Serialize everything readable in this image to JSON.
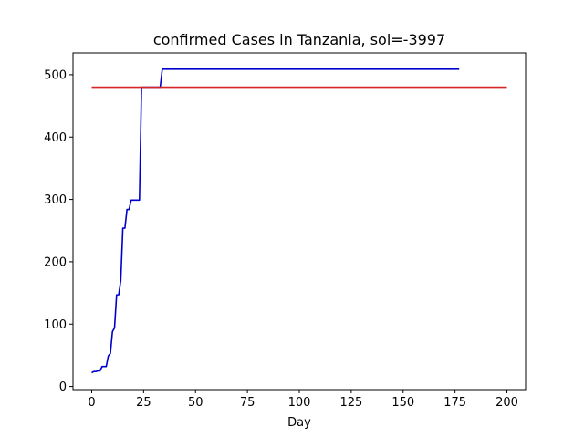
{
  "chart_data": {
    "type": "line",
    "title": "confirmed Cases in Tanzania, sol=-3997",
    "xlabel": "Day",
    "ylabel": "",
    "xlim": [
      -9,
      209
    ],
    "ylim": [
      -5,
      535
    ],
    "xticks": [
      0,
      25,
      50,
      75,
      100,
      125,
      150,
      175,
      200
    ],
    "yticks": [
      0,
      100,
      200,
      300,
      400,
      500
    ],
    "grid": false,
    "series": [
      {
        "color": "#0000cd",
        "x": [
          0,
          1,
          2,
          3,
          4,
          5,
          6,
          7,
          8,
          9,
          10,
          11,
          12,
          13,
          14,
          15,
          16,
          17,
          18,
          19,
          20,
          21,
          22,
          23,
          24,
          25,
          26,
          27,
          28,
          29,
          30,
          31,
          32,
          33,
          34,
          177
        ],
        "y": [
          22,
          24,
          24,
          25,
          25,
          32,
          32,
          32,
          49,
          53,
          88,
          94,
          147,
          147,
          170,
          254,
          254,
          284,
          284,
          299,
          299,
          299,
          299,
          299,
          480,
          480,
          480,
          480,
          480,
          480,
          480,
          480,
          480,
          480,
          509,
          509
        ]
      },
      {
        "color": "#d62728",
        "x": [
          0,
          200
        ],
        "y": [
          480,
          480
        ]
      }
    ]
  }
}
